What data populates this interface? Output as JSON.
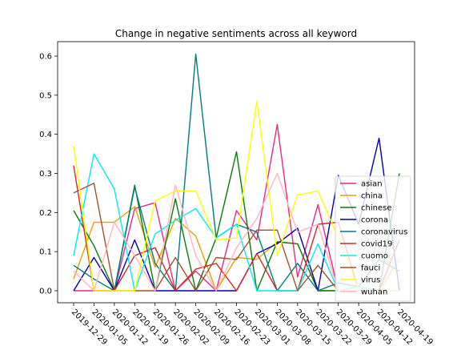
{
  "chart_data": {
    "type": "line",
    "title": "Change in negative sentiments across all keyword",
    "xlabel": "",
    "ylabel": "",
    "x": [
      "2019-12-29",
      "2020-01-05",
      "2020-01-12",
      "2020-01-19",
      "2020-01-26",
      "2020-02-02",
      "2020-02-09",
      "2020-02-16",
      "2020-02-23",
      "2020-03-01",
      "2020-03-08",
      "2020-03-15",
      "2020-03-22",
      "2020-03-29",
      "2020-04-05",
      "2020-04-12",
      "2020-04-19"
    ],
    "ylim": [
      0,
      0.6
    ],
    "yticks": [
      "0.0",
      "0.1",
      "0.2",
      "0.3",
      "0.4",
      "0.5",
      "0.6"
    ],
    "grid": false,
    "legend_position": "lower-right",
    "series": [
      {
        "name": "asian",
        "color": "#e7298a",
        "values": [
          0.0,
          0.0,
          0.0,
          0.21,
          0.225,
          0.0,
          0.05,
          0.0,
          0.205,
          0.13,
          0.425,
          0.035,
          0.22,
          0.0,
          0.0,
          0.0,
          0.13
        ]
      },
      {
        "name": "china",
        "color": "#e6a400",
        "values": [
          0.03,
          0.175,
          0.175,
          0.215,
          0.06,
          0.185,
          0.14,
          0.0,
          0.085,
          0.08,
          0.125,
          0.12,
          0.0,
          0.0,
          0.0,
          0.0,
          0.08
        ]
      },
      {
        "name": "chinese",
        "color": "#0a7a0a",
        "values": [
          0.205,
          0.115,
          0.0,
          0.27,
          0.0,
          0.235,
          0.0,
          0.135,
          0.355,
          0.0,
          0.125,
          0.12,
          0.0,
          0.0,
          0.0,
          0.0,
          0.3
        ]
      },
      {
        "name": "corona",
        "color": "#0000aa",
        "values": [
          0.0,
          0.085,
          0.0,
          0.13,
          0.0,
          0.0,
          0.0,
          0.0,
          0.0,
          0.095,
          0.12,
          0.16,
          0.0,
          0.295,
          0.17,
          0.39,
          0.0
        ]
      },
      {
        "name": "coronavirus",
        "color": "#007b7f",
        "values": [
          0.065,
          0.03,
          0.0,
          0.265,
          0.07,
          0.0,
          0.605,
          0.135,
          0.17,
          0.15,
          0.0,
          0.07,
          0.0,
          0.02,
          0.01,
          0.08,
          0.05
        ]
      },
      {
        "name": "covid19",
        "color": "#d62728",
        "values": [
          0.32,
          0.0,
          0.0,
          0.09,
          0.11,
          0.0,
          0.055,
          0.07,
          0.0,
          0.095,
          0.0,
          0.0,
          0.17,
          0.175,
          0.0,
          0.0,
          0.13
        ]
      },
      {
        "name": "cuomo",
        "color": "#00eeee",
        "values": [
          0.09,
          0.35,
          0.26,
          0.0,
          0.145,
          0.18,
          0.21,
          0.135,
          0.17,
          0.0,
          0.0,
          0.0,
          0.12,
          0.0,
          0.01,
          0.0,
          0.0
        ]
      },
      {
        "name": "fauci",
        "color": "#a0522d",
        "values": [
          0.25,
          0.275,
          0.0,
          0.0,
          0.0,
          0.085,
          0.0,
          0.085,
          0.08,
          0.155,
          0.155,
          0.0,
          0.065,
          0.0,
          0.0,
          0.0,
          0.0
        ]
      },
      {
        "name": "virus",
        "color": "#ffff00",
        "values": [
          0.37,
          0.0,
          0.0,
          0.0,
          0.23,
          0.255,
          0.255,
          0.13,
          0.135,
          0.485,
          0.09,
          0.245,
          0.255,
          0.135,
          0.0,
          0.0,
          0.0
        ]
      },
      {
        "name": "wuhan",
        "color": "#ffb6c1",
        "values": [
          0.05,
          0.0,
          0.175,
          0.09,
          0.0,
          0.27,
          0.09,
          0.0,
          0.11,
          0.185,
          0.3,
          0.15,
          0.17,
          0.0,
          0.0,
          0.0,
          0.0
        ]
      }
    ]
  }
}
